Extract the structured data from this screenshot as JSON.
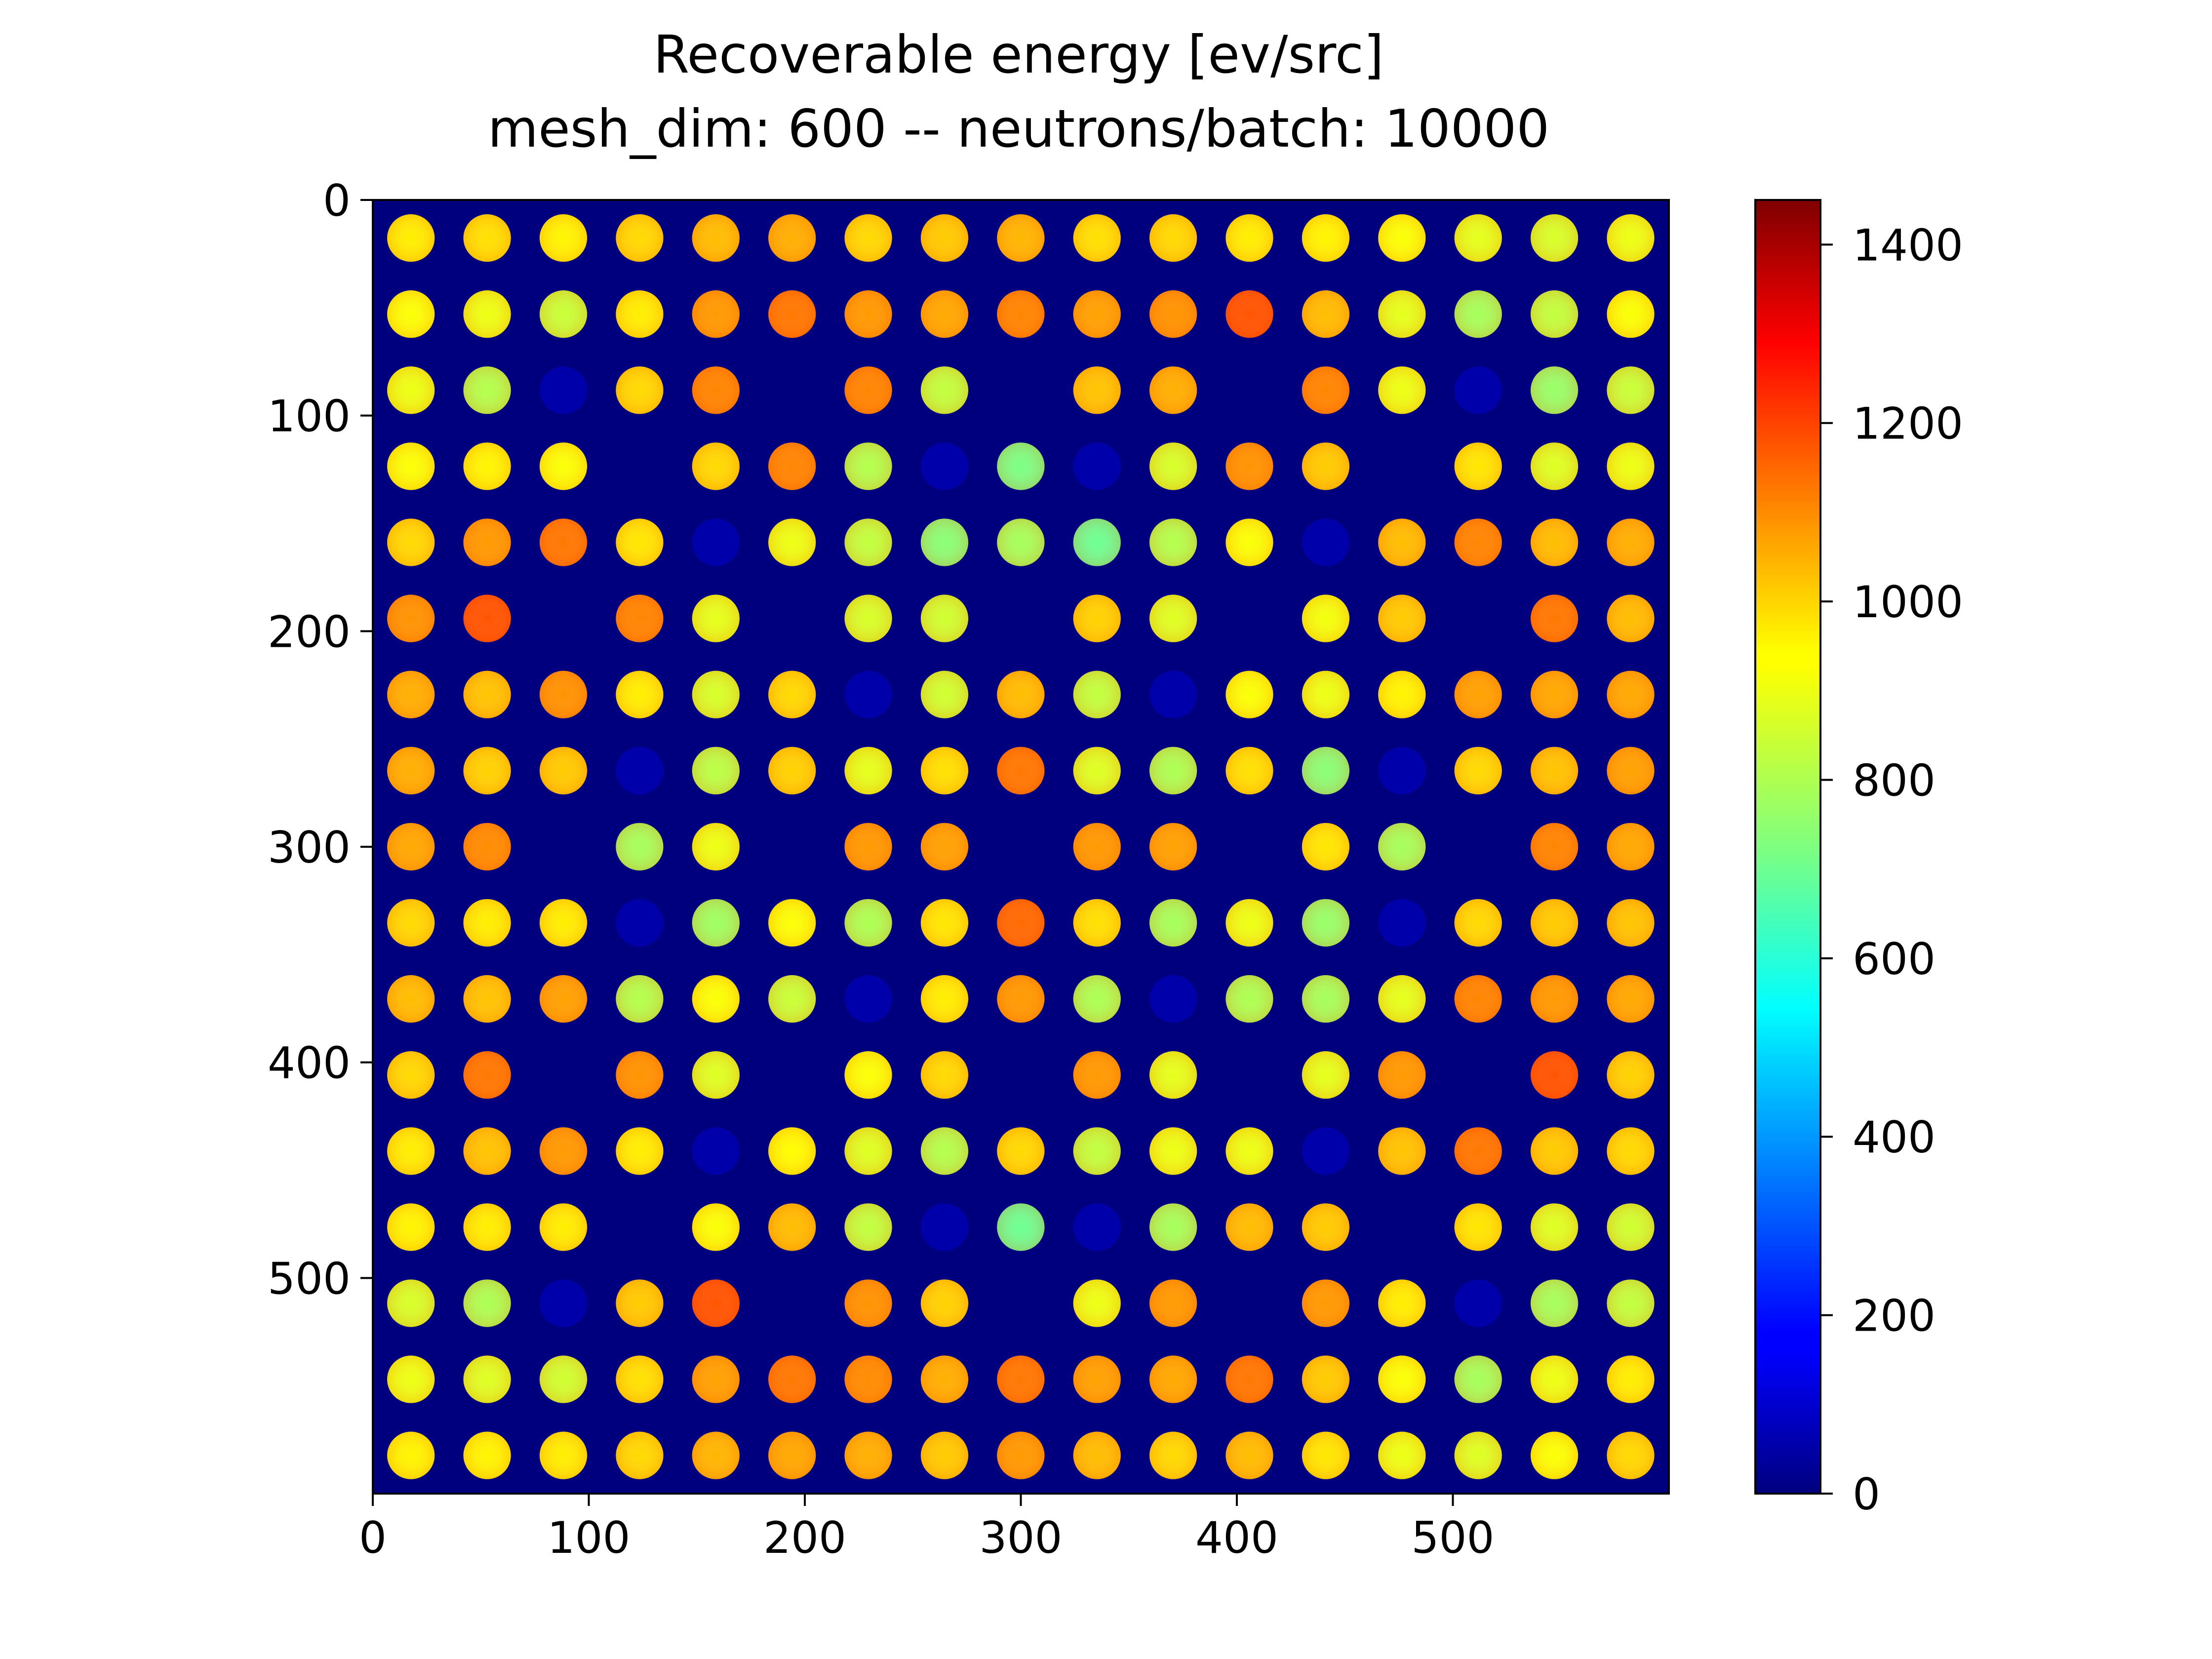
{
  "chart_data": {
    "type": "heatmap",
    "title": "Recoverable energy [ev/src]",
    "subtitle": "mesh_dim: 600 -- neutrons/batch: 10000",
    "xlabel": "",
    "ylabel": "",
    "xlim": [
      0,
      600
    ],
    "ylim": [
      600,
      0
    ],
    "x_ticks": [
      "0",
      "100",
      "200",
      "300",
      "400",
      "500"
    ],
    "y_ticks": [
      "0",
      "100",
      "200",
      "300",
      "400",
      "500"
    ],
    "colorbar": {
      "range": [
        0,
        1450
      ],
      "ticks": [
        "0",
        "200",
        "400",
        "600",
        "800",
        "1000",
        "1200",
        "1400"
      ],
      "colormap": "jet"
    },
    "grid": false,
    "lattice": {
      "rows": 17,
      "cols": 17,
      "pitch": 35.29,
      "pin_radius": 11,
      "guide_tube_value": 60,
      "background_value": 0,
      "values": [
        [
          930,
          950,
          920,
          960,
          1000,
          1020,
          960,
          980,
          1010,
          950,
          960,
          930,
          920,
          900,
          870,
          850,
          880
        ],
        [
          900,
          880,
          830,
          930,
          1050,
          1100,
          1050,
          1030,
          1080,
          1040,
          1060,
          1150,
          1000,
          870,
          780,
          820,
          900
        ],
        [
          880,
          800,
          60,
          960,
          1080,
          0,
          1080,
          820,
          0,
          990,
          1020,
          0,
          1080,
          880,
          60,
          760,
          830
        ],
        [
          900,
          920,
          900,
          0,
          960,
          1080,
          800,
          60,
          720,
          60,
          850,
          1060,
          980,
          0,
          940,
          860,
          880
        ],
        [
          960,
          1050,
          1100,
          940,
          60,
          880,
          820,
          740,
          780,
          700,
          800,
          900,
          60,
          1000,
          1080,
          1000,
          1020
        ],
        [
          1060,
          1150,
          0,
          1080,
          870,
          0,
          850,
          840,
          0,
          970,
          860,
          0,
          890,
          980,
          0,
          1100,
          1000
        ],
        [
          1020,
          990,
          1060,
          930,
          850,
          960,
          60,
          840,
          1000,
          820,
          60,
          900,
          880,
          920,
          1040,
          1030,
          1030
        ],
        [
          1020,
          970,
          980,
          60,
          810,
          970,
          870,
          950,
          1100,
          860,
          790,
          950,
          740,
          60,
          960,
          990,
          1040
        ],
        [
          1030,
          1070,
          0,
          780,
          880,
          0,
          1050,
          1040,
          0,
          1050,
          1040,
          0,
          940,
          780,
          0,
          1080,
          1030
        ],
        [
          960,
          930,
          930,
          60,
          770,
          900,
          790,
          940,
          1120,
          950,
          780,
          880,
          760,
          60,
          960,
          980,
          990
        ],
        [
          1000,
          990,
          1040,
          800,
          900,
          830,
          60,
          930,
          1050,
          790,
          60,
          790,
          780,
          870,
          1080,
          1050,
          1030
        ],
        [
          960,
          1100,
          0,
          1060,
          860,
          0,
          900,
          960,
          0,
          1050,
          870,
          0,
          870,
          1050,
          0,
          1150,
          970
        ],
        [
          930,
          990,
          1050,
          930,
          60,
          910,
          860,
          800,
          960,
          820,
          880,
          880,
          60,
          990,
          1100,
          980,
          960
        ],
        [
          920,
          930,
          930,
          0,
          900,
          1000,
          820,
          60,
          700,
          60,
          780,
          1000,
          980,
          0,
          940,
          860,
          840
        ],
        [
          850,
          790,
          60,
          980,
          1150,
          0,
          1060,
          970,
          0,
          880,
          1050,
          0,
          1050,
          930,
          60,
          780,
          820
        ],
        [
          880,
          860,
          840,
          950,
          1040,
          1100,
          1070,
          1020,
          1100,
          1040,
          1030,
          1100,
          980,
          900,
          780,
          880,
          930
        ],
        [
          920,
          920,
          930,
          960,
          1010,
          1030,
          1020,
          980,
          1050,
          1000,
          960,
          1000,
          940,
          880,
          860,
          900,
          960
        ]
      ]
    }
  }
}
